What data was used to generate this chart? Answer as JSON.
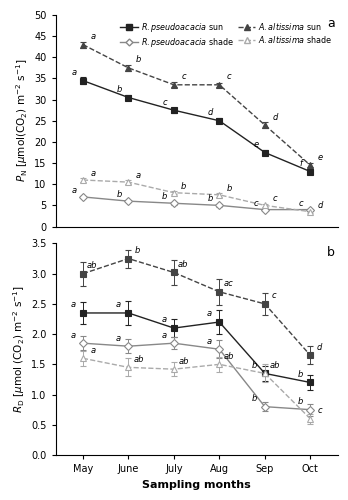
{
  "months": [
    "May",
    "June",
    "July",
    "Aug",
    "Sep",
    "Oct"
  ],
  "pn": {
    "rp_sun": [
      34.5,
      30.5,
      27.5,
      25.0,
      17.5,
      13.0
    ],
    "rp_sun_se": [
      0.8,
      0.7,
      0.6,
      0.6,
      0.7,
      0.5
    ],
    "rp_sun_labels": [
      "a",
      "b",
      "c",
      "d",
      "e",
      "f"
    ],
    "aa_sun": [
      43.0,
      37.5,
      33.5,
      33.5,
      24.0,
      14.5
    ],
    "aa_sun_se": [
      0.7,
      0.8,
      0.6,
      0.5,
      0.6,
      0.5
    ],
    "aa_sun_labels": [
      "a",
      "b",
      "c",
      "c",
      "d",
      "e"
    ],
    "rp_shade": [
      7.0,
      6.0,
      5.5,
      5.0,
      4.0,
      4.0
    ],
    "rp_shade_se": [
      0.3,
      0.3,
      0.3,
      0.3,
      0.2,
      0.2
    ],
    "rp_shade_labels": [
      "a",
      "b",
      "b",
      "b",
      "c",
      "c"
    ],
    "aa_shade": [
      11.0,
      10.5,
      8.0,
      7.5,
      5.0,
      3.5
    ],
    "aa_shade_se": [
      0.4,
      0.4,
      0.4,
      0.4,
      0.3,
      0.2
    ],
    "aa_shade_labels": [
      "a",
      "a",
      "b",
      "b",
      "c",
      "d"
    ]
  },
  "rd": {
    "aa_sun": [
      3.0,
      3.25,
      3.02,
      2.7,
      2.5,
      1.65
    ],
    "aa_sun_se": [
      0.2,
      0.15,
      0.2,
      0.22,
      0.18,
      0.15
    ],
    "aa_sun_labels": [
      "ab",
      "b",
      "ab",
      "ac",
      "c",
      "d"
    ],
    "rp_sun": [
      2.35,
      2.35,
      2.1,
      2.2,
      1.35,
      1.2
    ],
    "rp_sun_se": [
      0.18,
      0.2,
      0.15,
      0.2,
      0.12,
      0.12
    ],
    "rp_sun_labels": [
      "a",
      "a",
      "a",
      "a",
      "b",
      "b"
    ],
    "rp_shade": [
      1.85,
      1.8,
      1.85,
      1.75,
      0.8,
      0.75
    ],
    "rp_shade_se": [
      0.12,
      0.12,
      0.1,
      0.15,
      0.08,
      0.1
    ],
    "rp_shade_labels": [
      "a",
      "a",
      "a",
      "a",
      "b",
      "b"
    ],
    "aa_shade": [
      1.6,
      1.45,
      1.42,
      1.5,
      1.35,
      0.6
    ],
    "aa_shade_se": [
      0.12,
      0.15,
      0.12,
      0.12,
      0.15,
      0.08
    ],
    "aa_shade_labels": [
      "a",
      "ab",
      "ab",
      "ab",
      "ab",
      "c"
    ]
  },
  "col_rp_sun": "#222222",
  "col_aa_sun": "#444444",
  "col_rp_shade": "#888888",
  "col_aa_shade": "#aaaaaa",
  "panel_a_ylabel": "$P_{\\mathrm{N}}$ [$\\mu$mol(CO$_2$) m$^{-2}$ s$^{-1}$]",
  "panel_b_ylabel": "$R_{\\mathrm{D}}$ [$\\mu$mol (CO$_2$) m$^{-2}$ s$^{-1}$]",
  "xlabel": "Sampling months",
  "pn_ylim": [
    0,
    50
  ],
  "pn_yticks": [
    0,
    5,
    10,
    15,
    20,
    25,
    30,
    35,
    40,
    45,
    50
  ],
  "rd_ylim": [
    0.0,
    3.5
  ],
  "rd_yticks": [
    0.0,
    0.5,
    1.0,
    1.5,
    2.0,
    2.5,
    3.0,
    3.5
  ]
}
